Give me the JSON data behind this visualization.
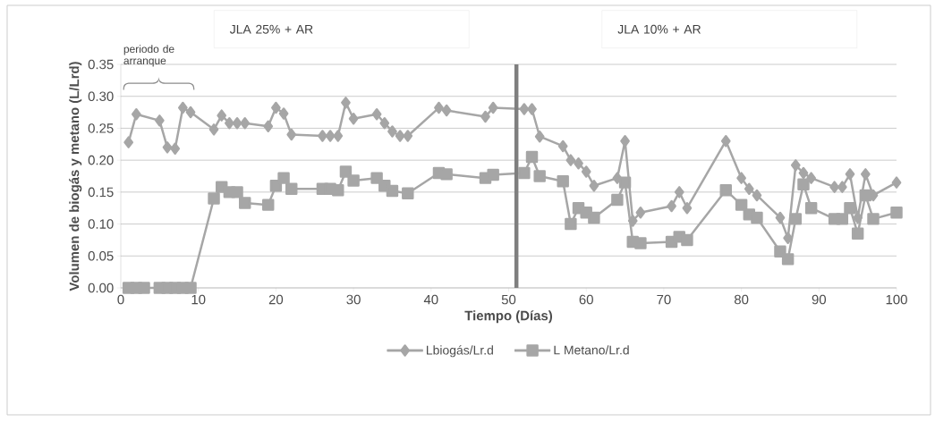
{
  "chart_data": {
    "type": "line",
    "xlabel": "Tiempo (Días)",
    "ylabel": "Volumen de biogás y metano (L/Lrd)",
    "xlim": [
      0,
      100
    ],
    "xticks": [
      0,
      10,
      20,
      30,
      40,
      50,
      60,
      70,
      80,
      90,
      100
    ],
    "ylim": [
      0,
      0.35
    ],
    "yticks": [
      {
        "value": 0,
        "label": "0.00"
      },
      {
        "value": 0.05,
        "label": "0.05"
      },
      {
        "value": 0.1,
        "label": "0.10"
      },
      {
        "value": 0.15,
        "label": "0.15"
      },
      {
        "value": 0.2,
        "label": "0.20"
      },
      {
        "value": 0.25,
        "label": "0.25"
      },
      {
        "value": 0.3,
        "label": "0.30"
      },
      {
        "value": 0.35,
        "label": "0.35"
      }
    ],
    "grid": "y",
    "legend": "bottom",
    "series": [
      {
        "name": "Lbiogás/Lr.d",
        "color": "#a6a6a6",
        "marker": "diamond",
        "x": [
          1,
          2,
          5,
          6,
          7,
          8,
          9,
          12,
          13,
          14,
          15,
          16,
          19,
          20,
          21,
          22,
          26,
          27,
          28,
          29,
          30,
          33,
          34,
          35,
          36,
          37,
          41,
          42,
          47,
          48,
          52,
          53,
          54,
          57,
          58,
          59,
          60,
          61,
          64,
          65,
          66,
          67,
          71,
          72,
          73,
          78,
          80,
          81,
          82,
          85,
          86,
          87,
          88,
          89,
          92,
          93,
          94,
          95,
          96,
          97,
          100
        ],
        "values": [
          0.228,
          0.272,
          0.262,
          0.22,
          0.218,
          0.282,
          0.275,
          0.248,
          0.27,
          0.258,
          0.258,
          0.258,
          0.253,
          0.282,
          0.273,
          0.24,
          0.238,
          0.238,
          0.238,
          0.29,
          0.265,
          0.272,
          0.258,
          0.245,
          0.238,
          0.238,
          0.282,
          0.278,
          0.268,
          0.282,
          0.28,
          0.28,
          0.237,
          0.222,
          0.2,
          0.195,
          0.182,
          0.16,
          0.172,
          0.23,
          0.105,
          0.118,
          0.128,
          0.15,
          0.125,
          0.23,
          0.172,
          0.155,
          0.145,
          0.11,
          0.078,
          0.192,
          0.18,
          0.172,
          0.158,
          0.158,
          0.178,
          0.11,
          0.178,
          0.145,
          0.165
        ]
      },
      {
        "name": "L Metano/Lr.d",
        "color": "#a6a6a6",
        "marker": "square",
        "x": [
          1,
          2,
          3,
          5,
          6,
          7,
          8,
          9,
          12,
          13,
          14,
          15,
          16,
          19,
          20,
          21,
          22,
          26,
          27,
          28,
          29,
          30,
          33,
          34,
          35,
          37,
          41,
          42,
          47,
          48,
          52,
          53,
          54,
          57,
          58,
          59,
          60,
          61,
          64,
          65,
          66,
          67,
          71,
          72,
          73,
          78,
          80,
          81,
          82,
          85,
          86,
          87,
          88,
          89,
          92,
          93,
          94,
          95,
          96,
          97,
          100
        ],
        "values": [
          0,
          0,
          0,
          0,
          0,
          0,
          0,
          0,
          0.14,
          0.158,
          0.15,
          0.15,
          0.133,
          0.13,
          0.16,
          0.172,
          0.155,
          0.155,
          0.155,
          0.153,
          0.182,
          0.168,
          0.172,
          0.16,
          0.152,
          0.148,
          0.18,
          0.178,
          0.172,
          0.177,
          0.18,
          0.205,
          0.175,
          0.167,
          0.1,
          0.125,
          0.118,
          0.11,
          0.138,
          0.165,
          0.072,
          0.07,
          0.072,
          0.08,
          0.075,
          0.153,
          0.13,
          0.115,
          0.11,
          0.057,
          0.045,
          0.108,
          0.162,
          0.125,
          0.108,
          0.108,
          0.125,
          0.085,
          0.145,
          0.108,
          0.118
        ]
      }
    ],
    "ref_lines": [
      {
        "axis": "x",
        "value": 51,
        "color": "#7f7f7f"
      }
    ],
    "annotations": [
      "periodo de arranque",
      "JLA 25% + AR",
      "JLA 10% + AR"
    ]
  }
}
